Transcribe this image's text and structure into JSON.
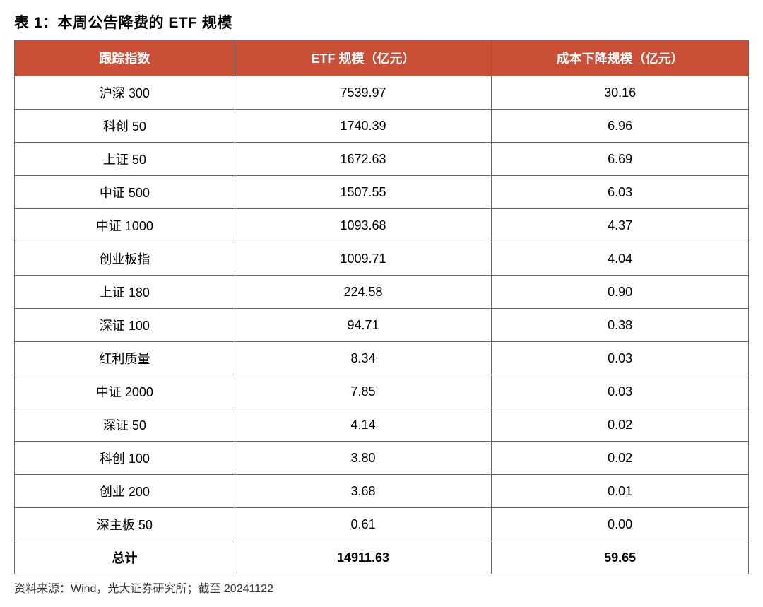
{
  "title": "表 1：本周公告降费的 ETF 规模",
  "table": {
    "type": "table",
    "header_bg_color": "#c94f36",
    "header_text_color": "#ffffff",
    "border_color": "#666666",
    "columns": [
      {
        "label": "跟踪指数",
        "align": "center"
      },
      {
        "label": "ETF 规模（亿元）",
        "align": "center"
      },
      {
        "label": "成本下降规模（亿元）",
        "align": "center"
      }
    ],
    "rows": [
      {
        "index_name": "沪深 300",
        "etf_scale": "7539.97",
        "cost_reduction": "30.16"
      },
      {
        "index_name": "科创 50",
        "etf_scale": "1740.39",
        "cost_reduction": "6.96"
      },
      {
        "index_name": "上证 50",
        "etf_scale": "1672.63",
        "cost_reduction": "6.69"
      },
      {
        "index_name": "中证 500",
        "etf_scale": "1507.55",
        "cost_reduction": "6.03"
      },
      {
        "index_name": "中证 1000",
        "etf_scale": "1093.68",
        "cost_reduction": "4.37"
      },
      {
        "index_name": "创业板指",
        "etf_scale": "1009.71",
        "cost_reduction": "4.04"
      },
      {
        "index_name": "上证 180",
        "etf_scale": "224.58",
        "cost_reduction": "0.90"
      },
      {
        "index_name": "深证 100",
        "etf_scale": "94.71",
        "cost_reduction": "0.38"
      },
      {
        "index_name": "红利质量",
        "etf_scale": "8.34",
        "cost_reduction": "0.03"
      },
      {
        "index_name": "中证 2000",
        "etf_scale": "7.85",
        "cost_reduction": "0.03"
      },
      {
        "index_name": "深证 50",
        "etf_scale": "4.14",
        "cost_reduction": "0.02"
      },
      {
        "index_name": "科创 100",
        "etf_scale": "3.80",
        "cost_reduction": "0.02"
      },
      {
        "index_name": "创业 200",
        "etf_scale": "3.68",
        "cost_reduction": "0.01"
      },
      {
        "index_name": "深主板 50",
        "etf_scale": "0.61",
        "cost_reduction": "0.00"
      }
    ],
    "total_row": {
      "label": "总计",
      "etf_scale": "14911.63",
      "cost_reduction": "59.65"
    }
  },
  "source_note": "资料来源：Wind，光大证券研究所；截至 20241122"
}
